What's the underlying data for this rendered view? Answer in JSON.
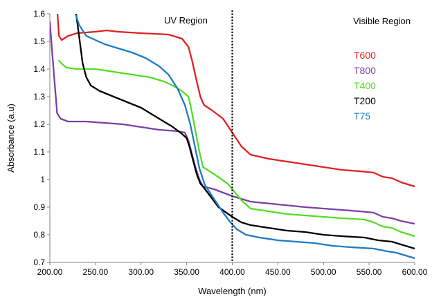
{
  "chart_data": {
    "type": "line",
    "title": "",
    "xlabel": "Wavelength (nm)",
    "ylabel": "Absorbance (a.u)",
    "xlim": [
      200,
      600
    ],
    "ylim": [
      0.7,
      1.6
    ],
    "xticks": [
      200,
      250,
      300,
      350,
      400,
      450,
      500,
      550,
      600
    ],
    "xtick_labels": [
      "200.00",
      "250.00",
      "300.00",
      "350.00",
      "400.00",
      "450.00",
      "500.00",
      "550.00",
      "600.00"
    ],
    "yticks": [
      0.7,
      0.8,
      0.9,
      1.0,
      1.1,
      1.2,
      1.3,
      1.4,
      1.5,
      1.6
    ],
    "ytick_labels": [
      "0.7",
      "0.8",
      "0.9",
      "1",
      "1.1",
      "1.2",
      "1.3",
      "1.4",
      "1.5",
      "1.6"
    ],
    "grid": false,
    "legend_position": "top-right",
    "annotations": {
      "uv_region": "UV Region",
      "visible_region": "Visible Region",
      "divider_x": 400
    },
    "series": [
      {
        "name": "T600",
        "color": "#e02020",
        "points": [
          [
            208,
            1.62
          ],
          [
            210,
            1.52
          ],
          [
            213,
            1.505
          ],
          [
            220,
            1.52
          ],
          [
            230,
            1.53
          ],
          [
            250,
            1.535
          ],
          [
            262,
            1.54
          ],
          [
            275,
            1.535
          ],
          [
            300,
            1.53
          ],
          [
            330,
            1.525
          ],
          [
            345,
            1.51
          ],
          [
            352,
            1.48
          ],
          [
            356,
            1.43
          ],
          [
            360,
            1.37
          ],
          [
            365,
            1.3
          ],
          [
            369,
            1.27
          ],
          [
            378,
            1.25
          ],
          [
            390,
            1.22
          ],
          [
            400,
            1.17
          ],
          [
            410,
            1.12
          ],
          [
            420,
            1.09
          ],
          [
            440,
            1.075
          ],
          [
            460,
            1.065
          ],
          [
            480,
            1.055
          ],
          [
            500,
            1.045
          ],
          [
            520,
            1.035
          ],
          [
            540,
            1.03
          ],
          [
            555,
            1.025
          ],
          [
            565,
            1.01
          ],
          [
            575,
            1.005
          ],
          [
            585,
            0.99
          ],
          [
            600,
            0.975
          ]
        ]
      },
      {
        "name": "T800",
        "color": "#7a3fa6",
        "points": [
          [
            200,
            1.57
          ],
          [
            204,
            1.4
          ],
          [
            208,
            1.24
          ],
          [
            212,
            1.22
          ],
          [
            220,
            1.21
          ],
          [
            240,
            1.21
          ],
          [
            260,
            1.205
          ],
          [
            280,
            1.2
          ],
          [
            300,
            1.19
          ],
          [
            320,
            1.18
          ],
          [
            340,
            1.175
          ],
          [
            348,
            1.17
          ],
          [
            352,
            1.14
          ],
          [
            356,
            1.09
          ],
          [
            360,
            1.04
          ],
          [
            364,
            1.0
          ],
          [
            368,
            0.975
          ],
          [
            380,
            0.965
          ],
          [
            400,
            0.94
          ],
          [
            420,
            0.92
          ],
          [
            450,
            0.91
          ],
          [
            480,
            0.9
          ],
          [
            500,
            0.895
          ],
          [
            520,
            0.89
          ],
          [
            540,
            0.885
          ],
          [
            555,
            0.88
          ],
          [
            565,
            0.865
          ],
          [
            575,
            0.86
          ],
          [
            585,
            0.85
          ],
          [
            600,
            0.84
          ]
        ]
      },
      {
        "name": "T400",
        "color": "#55dd22",
        "points": [
          [
            210,
            1.43
          ],
          [
            213,
            1.42
          ],
          [
            218,
            1.405
          ],
          [
            230,
            1.4
          ],
          [
            250,
            1.4
          ],
          [
            270,
            1.39
          ],
          [
            290,
            1.38
          ],
          [
            310,
            1.37
          ],
          [
            325,
            1.355
          ],
          [
            335,
            1.34
          ],
          [
            345,
            1.32
          ],
          [
            352,
            1.3
          ],
          [
            356,
            1.24
          ],
          [
            360,
            1.17
          ],
          [
            364,
            1.1
          ],
          [
            368,
            1.045
          ],
          [
            380,
            1.02
          ],
          [
            395,
            0.985
          ],
          [
            410,
            0.925
          ],
          [
            420,
            0.895
          ],
          [
            440,
            0.885
          ],
          [
            460,
            0.875
          ],
          [
            480,
            0.87
          ],
          [
            500,
            0.865
          ],
          [
            520,
            0.86
          ],
          [
            545,
            0.855
          ],
          [
            555,
            0.845
          ],
          [
            565,
            0.83
          ],
          [
            575,
            0.825
          ],
          [
            585,
            0.81
          ],
          [
            600,
            0.795
          ]
        ]
      },
      {
        "name": "T200",
        "color": "#000000",
        "points": [
          [
            228,
            1.62
          ],
          [
            232,
            1.52
          ],
          [
            236,
            1.42
          ],
          [
            240,
            1.37
          ],
          [
            245,
            1.34
          ],
          [
            255,
            1.32
          ],
          [
            270,
            1.3
          ],
          [
            285,
            1.28
          ],
          [
            300,
            1.26
          ],
          [
            315,
            1.23
          ],
          [
            325,
            1.21
          ],
          [
            335,
            1.19
          ],
          [
            345,
            1.165
          ],
          [
            350,
            1.15
          ],
          [
            353,
            1.12
          ],
          [
            357,
            1.07
          ],
          [
            361,
            1.02
          ],
          [
            365,
            0.985
          ],
          [
            369,
            0.97
          ],
          [
            385,
            0.9
          ],
          [
            400,
            0.865
          ],
          [
            410,
            0.845
          ],
          [
            420,
            0.835
          ],
          [
            440,
            0.825
          ],
          [
            460,
            0.815
          ],
          [
            480,
            0.81
          ],
          [
            500,
            0.8
          ],
          [
            520,
            0.795
          ],
          [
            545,
            0.79
          ],
          [
            560,
            0.78
          ],
          [
            575,
            0.775
          ],
          [
            585,
            0.765
          ],
          [
            600,
            0.75
          ]
        ]
      },
      {
        "name": "T75",
        "color": "#1e7ac8",
        "points": [
          [
            226,
            1.62
          ],
          [
            232,
            1.56
          ],
          [
            240,
            1.52
          ],
          [
            250,
            1.505
          ],
          [
            260,
            1.49
          ],
          [
            275,
            1.475
          ],
          [
            290,
            1.46
          ],
          [
            305,
            1.44
          ],
          [
            320,
            1.41
          ],
          [
            330,
            1.38
          ],
          [
            340,
            1.33
          ],
          [
            348,
            1.27
          ],
          [
            354,
            1.2
          ],
          [
            359,
            1.12
          ],
          [
            364,
            1.04
          ],
          [
            370,
            0.98
          ],
          [
            380,
            0.93
          ],
          [
            390,
            0.88
          ],
          [
            398,
            0.845
          ],
          [
            405,
            0.82
          ],
          [
            415,
            0.8
          ],
          [
            430,
            0.79
          ],
          [
            450,
            0.78
          ],
          [
            470,
            0.775
          ],
          [
            490,
            0.77
          ],
          [
            510,
            0.76
          ],
          [
            530,
            0.755
          ],
          [
            555,
            0.75
          ],
          [
            570,
            0.74
          ],
          [
            580,
            0.735
          ],
          [
            590,
            0.725
          ],
          [
            600,
            0.715
          ]
        ]
      }
    ]
  }
}
